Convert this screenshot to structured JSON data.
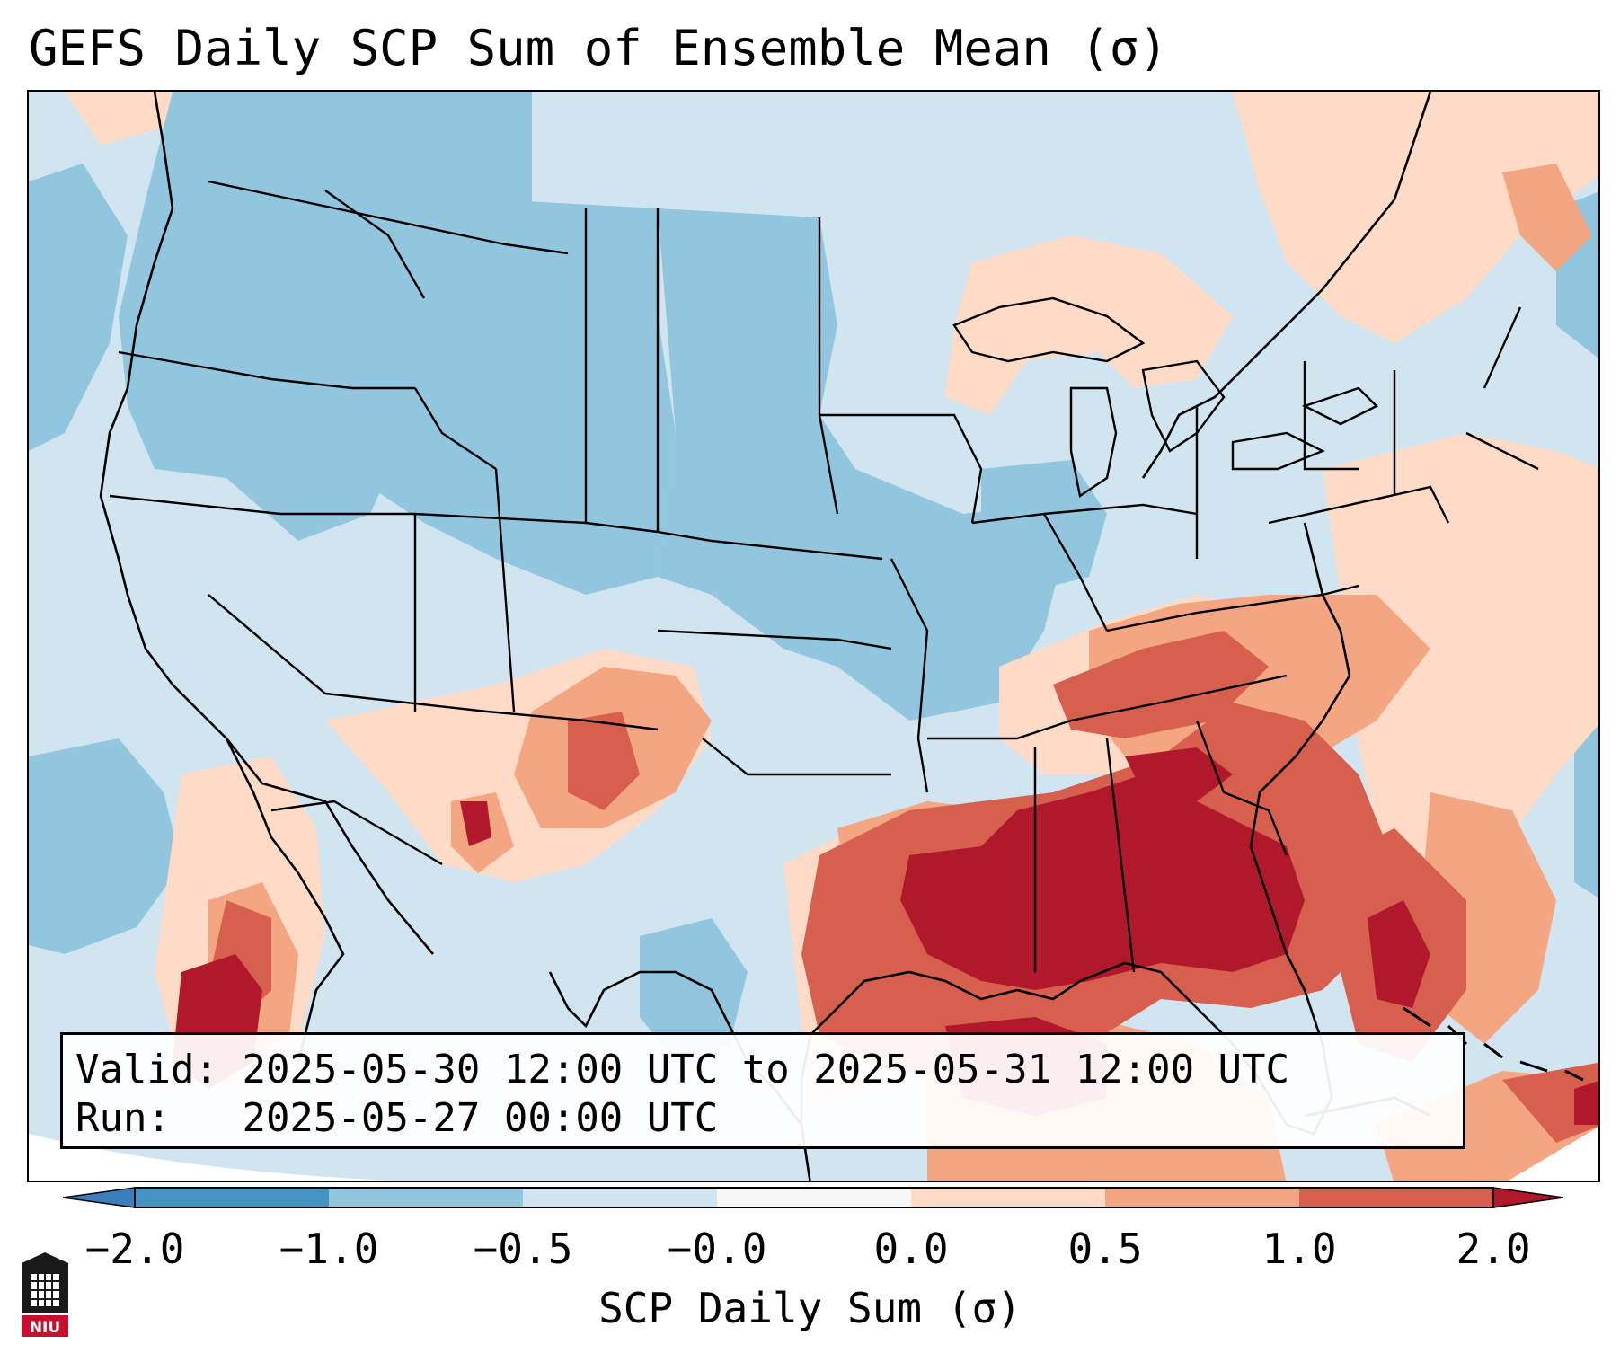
{
  "title": "GEFS Daily SCP Sum of Ensemble Mean (σ)",
  "info": {
    "valid_label": "Valid:",
    "valid_value": "2025-05-30 12:00 UTC to 2025-05-31 12:00 UTC",
    "run_label": "Run:",
    "run_value": "2025-05-27 00:00 UTC"
  },
  "colorbar": {
    "label": "SCP Daily Sum (σ)",
    "ticks": [
      "−2.0",
      "−1.0",
      "−0.5",
      "−0.0",
      "0.0",
      "0.5",
      "1.0",
      "2.0"
    ],
    "colors": {
      "under": "#3a7fbd",
      "bin_neg2_neg1": "#4393c3",
      "bin_neg1_neg05": "#92c5de",
      "bin_neg05_0": "#d1e5f0",
      "bin_zero": "#f7f7f7",
      "bin_0_05": "#fddbc7",
      "bin_05_1": "#f4a582",
      "bin_1_2": "#d6604d",
      "over": "#b2182b"
    }
  },
  "map_colors": {
    "ocean_base": "#d0e3f0",
    "land_base": "#d1e5f0",
    "borders": "#000000"
  },
  "logo": {
    "text": "NIU",
    "icon": "university-shield-icon",
    "color": "#c8102e"
  }
}
